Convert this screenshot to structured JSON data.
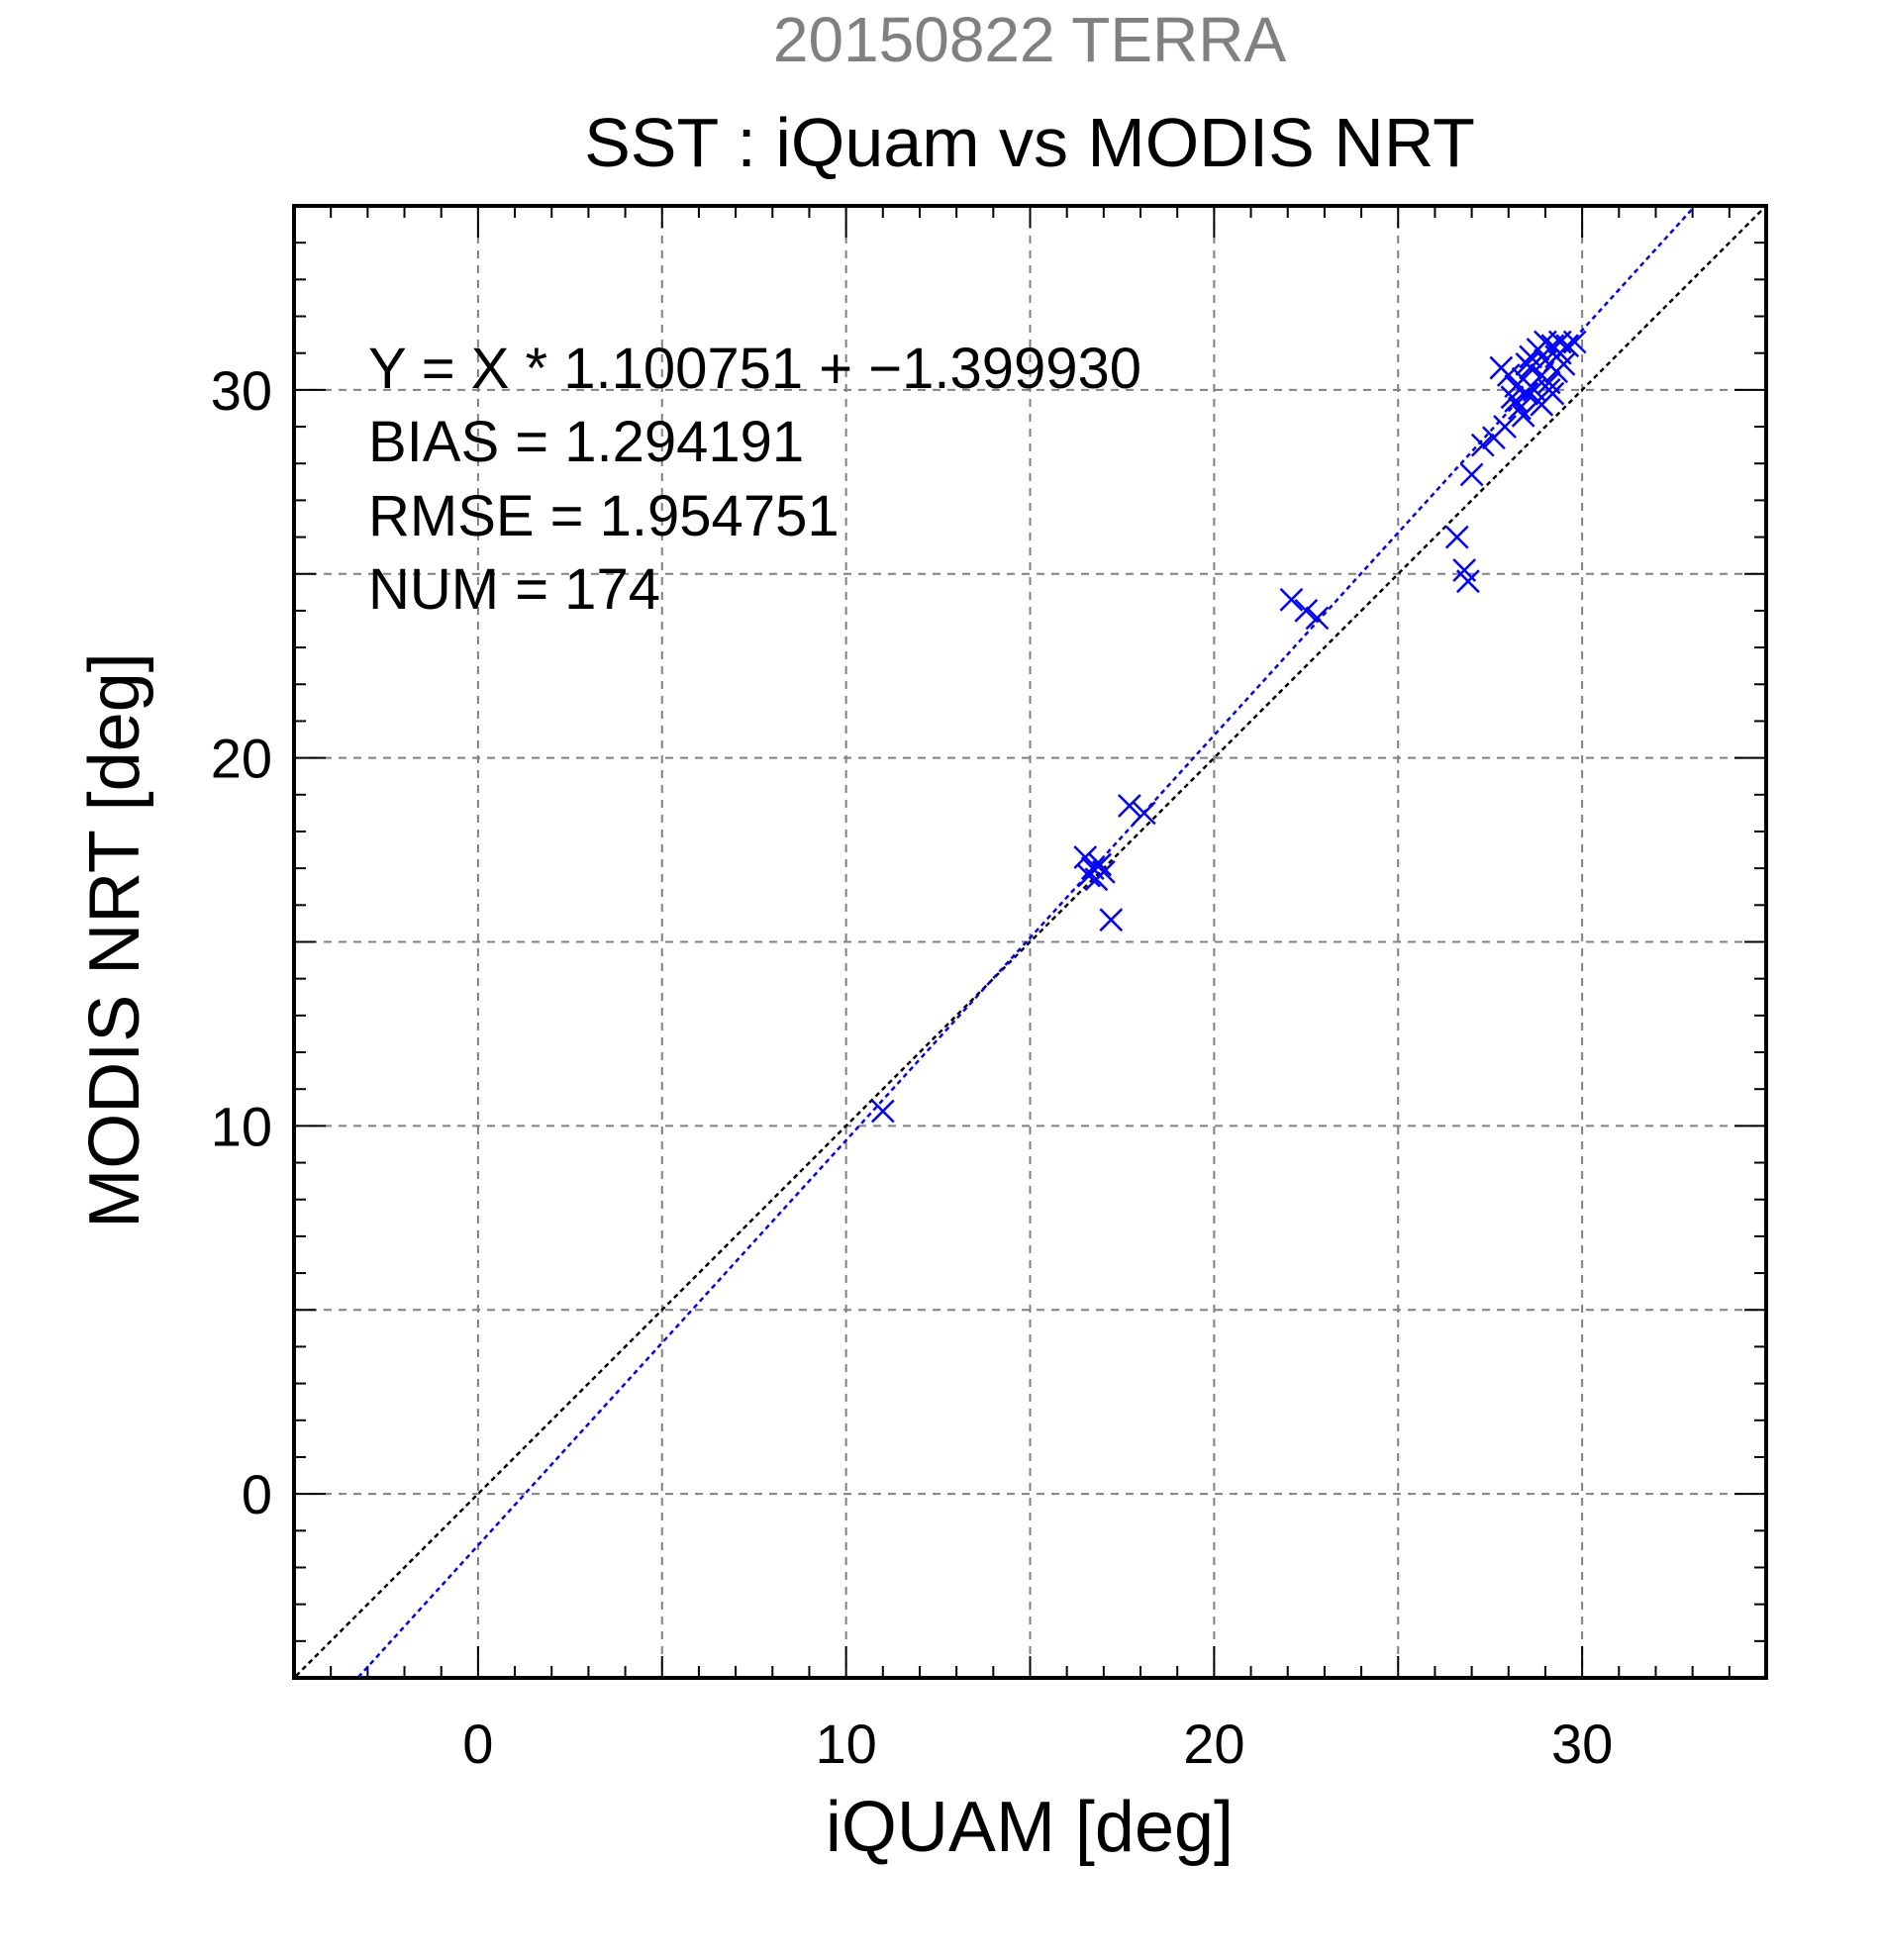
{
  "chart_data": {
    "type": "scatter",
    "suptitle": "20150822 TERRA",
    "title": "SST : iQuam vs MODIS NRT",
    "xlabel": "iQUAM [deg]",
    "ylabel": "MODIS NRT [deg]",
    "xlim": [
      -5,
      35
    ],
    "ylim": [
      -5,
      35
    ],
    "xticks": [
      0,
      10,
      20,
      30
    ],
    "yticks": [
      0,
      10,
      20,
      30
    ],
    "grid": true,
    "annotations": [
      "Y = X * 1.100751 + −1.399930",
      "BIAS = 1.294191",
      "RMSE = 1.954751",
      "NUM = 174"
    ],
    "fit_line": {
      "slope": 1.100751,
      "intercept": -1.39993
    },
    "identity_line": {
      "slope": 1,
      "intercept": 0
    },
    "colors": {
      "points": "#0000ff",
      "fit": "#0000ff",
      "identity": "#000000",
      "grid": "#808080",
      "suptitle": "#808080",
      "text": "#000000"
    },
    "points": [
      [
        11.0,
        10.4
      ],
      [
        16.5,
        17.3
      ],
      [
        16.6,
        16.8
      ],
      [
        16.7,
        17.0
      ],
      [
        16.8,
        16.7
      ],
      [
        16.9,
        17.1
      ],
      [
        17.0,
        16.9
      ],
      [
        17.2,
        15.6
      ],
      [
        17.7,
        18.7
      ],
      [
        18.1,
        18.5
      ],
      [
        22.1,
        24.3
      ],
      [
        22.5,
        24.0
      ],
      [
        22.8,
        23.8
      ],
      [
        26.6,
        26.0
      ],
      [
        26.8,
        25.1
      ],
      [
        26.9,
        24.8
      ],
      [
        27.0,
        27.7
      ],
      [
        27.3,
        28.5
      ],
      [
        27.6,
        28.7
      ],
      [
        27.9,
        29.0
      ],
      [
        27.8,
        30.6
      ],
      [
        28.0,
        30.4
      ],
      [
        28.1,
        29.8
      ],
      [
        28.2,
        30.1
      ],
      [
        28.3,
        29.5
      ],
      [
        28.4,
        30.3
      ],
      [
        28.5,
        29.9
      ],
      [
        28.6,
        30.6
      ],
      [
        28.7,
        30.0
      ],
      [
        28.8,
        29.7
      ],
      [
        28.9,
        30.4
      ],
      [
        29.0,
        30.8
      ],
      [
        29.1,
        30.2
      ],
      [
        29.2,
        29.9
      ],
      [
        29.3,
        30.5
      ],
      [
        29.4,
        31.0
      ],
      [
        29.5,
        30.7
      ],
      [
        28.4,
        29.3
      ],
      [
        28.6,
        30.9
      ],
      [
        28.8,
        31.1
      ],
      [
        29.0,
        31.3
      ],
      [
        29.2,
        31.2
      ],
      [
        29.4,
        31.3
      ],
      [
        29.6,
        31.2
      ],
      [
        29.8,
        31.3
      ],
      [
        29.1,
        30.0
      ],
      [
        28.9,
        29.6
      ],
      [
        28.2,
        29.7
      ],
      [
        28.5,
        30.7
      ],
      [
        29.3,
        30.9
      ]
    ]
  }
}
